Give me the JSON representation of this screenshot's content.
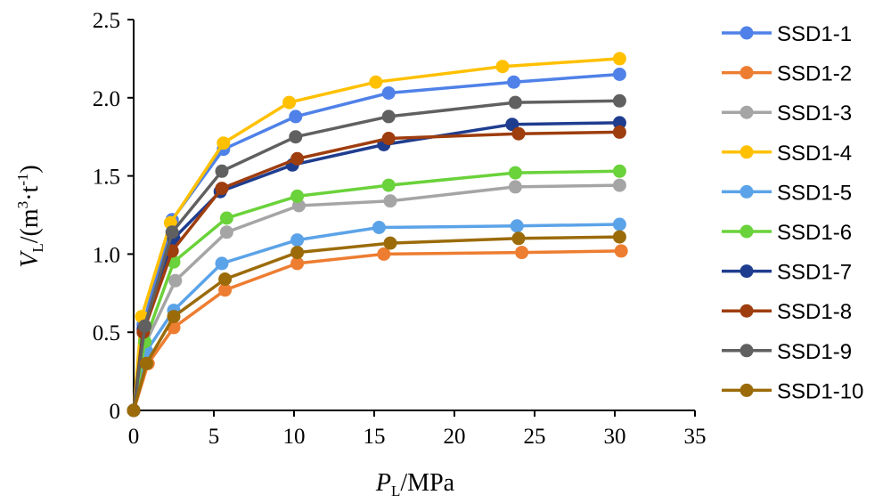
{
  "chart_data": {
    "type": "line",
    "xlabel": {
      "main": "P",
      "sub": "L",
      "rest": "/MPa"
    },
    "ylabel": {
      "main": "V",
      "sub": "L",
      "open": "/(m",
      "sup1": "3",
      "mid": "·t",
      "sup2": "-1",
      "close": ")"
    },
    "xlim": [
      0,
      35
    ],
    "ylim": [
      0,
      2.5
    ],
    "xticks": [
      "0",
      "5",
      "10",
      "15",
      "20",
      "25",
      "30",
      "35"
    ],
    "yticks": [
      "0",
      "0.5",
      "1.0",
      "1.5",
      "2.0",
      "2.5"
    ],
    "grid": false,
    "legend_position": "right",
    "series": [
      {
        "name": "SSD1-1",
        "color": "#4f81e8",
        "x": [
          0,
          0.6,
          2.4,
          5.6,
          10.1,
          15.9,
          23.7,
          30.3
        ],
        "y": [
          0,
          0.55,
          1.22,
          1.67,
          1.88,
          2.03,
          2.1,
          2.15
        ]
      },
      {
        "name": "SSD1-2",
        "color": "#ed7d31",
        "x": [
          0,
          0.9,
          2.5,
          5.7,
          10.2,
          15.6,
          24.2,
          30.4
        ],
        "y": [
          0,
          0.3,
          0.53,
          0.77,
          0.94,
          1.0,
          1.01,
          1.02
        ]
      },
      {
        "name": "SSD1-3",
        "color": "#a5a5a5",
        "x": [
          0,
          0.7,
          2.6,
          5.8,
          10.3,
          16.0,
          23.8,
          30.3
        ],
        "y": [
          0,
          0.42,
          0.83,
          1.14,
          1.31,
          1.34,
          1.43,
          1.44
        ]
      },
      {
        "name": "SSD1-4",
        "color": "#ffc000",
        "x": [
          0,
          0.5,
          2.3,
          5.6,
          9.7,
          15.1,
          23.0,
          30.3
        ],
        "y": [
          0,
          0.6,
          1.2,
          1.71,
          1.97,
          2.1,
          2.2,
          2.25
        ]
      },
      {
        "name": "SSD1-5",
        "color": "#5ba3e8",
        "x": [
          0,
          0.8,
          2.5,
          5.5,
          10.2,
          15.3,
          23.9,
          30.3
        ],
        "y": [
          0,
          0.38,
          0.64,
          0.94,
          1.09,
          1.17,
          1.18,
          1.19
        ]
      },
      {
        "name": "SSD1-6",
        "color": "#6ad23a",
        "x": [
          0,
          0.7,
          2.5,
          5.8,
          10.2,
          15.9,
          23.8,
          30.3
        ],
        "y": [
          0,
          0.44,
          0.95,
          1.23,
          1.37,
          1.44,
          1.52,
          1.53
        ]
      },
      {
        "name": "SSD1-7",
        "color": "#1f3d8f",
        "x": [
          0,
          0.6,
          2.5,
          5.4,
          9.9,
          15.6,
          23.6,
          30.3
        ],
        "y": [
          0,
          0.52,
          1.1,
          1.4,
          1.57,
          1.7,
          1.83,
          1.84
        ]
      },
      {
        "name": "SSD1-8",
        "color": "#9e3d0e",
        "x": [
          0,
          0.6,
          2.4,
          5.5,
          10.2,
          15.9,
          24.0,
          30.3
        ],
        "y": [
          0,
          0.5,
          1.02,
          1.42,
          1.61,
          1.74,
          1.77,
          1.78
        ]
      },
      {
        "name": "SSD1-9",
        "color": "#606060",
        "x": [
          0,
          0.7,
          2.4,
          5.5,
          10.1,
          15.9,
          23.8,
          30.3
        ],
        "y": [
          0,
          0.54,
          1.14,
          1.53,
          1.75,
          1.88,
          1.97,
          1.98
        ]
      },
      {
        "name": "SSD1-10",
        "color": "#9b6b0a",
        "x": [
          0,
          0.8,
          2.5,
          5.7,
          10.2,
          16.0,
          24.0,
          30.3
        ],
        "y": [
          0,
          0.3,
          0.6,
          0.84,
          1.01,
          1.07,
          1.1,
          1.11
        ]
      }
    ]
  }
}
